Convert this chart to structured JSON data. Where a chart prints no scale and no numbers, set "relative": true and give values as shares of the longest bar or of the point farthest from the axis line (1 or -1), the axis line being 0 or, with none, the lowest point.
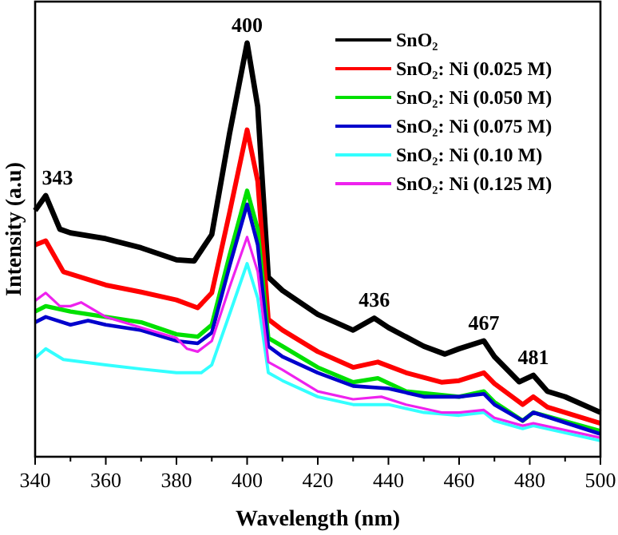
{
  "chart_data": {
    "type": "line",
    "relative": true,
    "xlabel": "Wavelength (nm)",
    "ylabel": "Intensity (a.u)",
    "xlim": [
      340,
      500
    ],
    "xticks": [
      340,
      {
        "value": 350,
        "label": null
      },
      360,
      {
        "value": 370,
        "label": null
      },
      380,
      {
        "value": 390,
        "label": null
      },
      400,
      {
        "value": 410,
        "label": null
      },
      420,
      {
        "value": 430,
        "label": null
      },
      440,
      {
        "value": 450,
        "label": null
      },
      460,
      {
        "value": 470,
        "label": null
      },
      480,
      {
        "value": 490,
        "label": null
      },
      500
    ],
    "legend": "top right",
    "grid": false,
    "marker": "none",
    "line_style": "solid",
    "series": [
      {
        "name": "SnO₂",
        "color": "#000000",
        "x": [
          340,
          343,
          347,
          350,
          360,
          370,
          380,
          385,
          390,
          395,
          400,
          403,
          406,
          410,
          420,
          430,
          436,
          440,
          450,
          456,
          460,
          467,
          470,
          477,
          481,
          485,
          490,
          500
        ],
        "values": [
          0.595,
          0.631,
          0.55,
          0.541,
          0.527,
          0.505,
          0.476,
          0.473,
          0.537,
          0.78,
          1,
          0.846,
          0.434,
          0.402,
          0.344,
          0.306,
          0.335,
          0.312,
          0.267,
          0.248,
          0.261,
          0.28,
          0.242,
          0.181,
          0.197,
          0.158,
          0.145,
          0.107
        ]
      },
      {
        "name": "SnO₂: Ni (0.025 M)",
        "color": "#ff0000",
        "x": [
          340,
          343,
          348,
          360,
          370,
          380,
          386,
          390,
          395,
          400,
          403,
          406,
          410,
          420,
          430,
          437,
          445,
          455,
          460,
          467,
          470,
          478,
          481,
          485,
          500
        ],
        "values": [
          0.512,
          0.522,
          0.447,
          0.415,
          0.398,
          0.379,
          0.36,
          0.396,
          0.589,
          0.79,
          0.666,
          0.332,
          0.306,
          0.254,
          0.216,
          0.229,
          0.203,
          0.18,
          0.184,
          0.203,
          0.177,
          0.126,
          0.145,
          0.12,
          0.081
        ]
      },
      {
        "name": "SnO₂: Ni (0.050 M)",
        "color": "#00e000",
        "x": [
          340,
          343,
          350,
          360,
          370,
          380,
          386,
          390,
          395,
          400,
          403,
          406,
          410,
          420,
          430,
          437,
          445,
          460,
          467,
          470,
          478,
          481,
          500
        ],
        "values": [
          0.351,
          0.364,
          0.351,
          0.338,
          0.325,
          0.296,
          0.29,
          0.319,
          0.486,
          0.643,
          0.55,
          0.287,
          0.267,
          0.216,
          0.18,
          0.19,
          0.158,
          0.145,
          0.158,
          0.132,
          0.087,
          0.107,
          0.062
        ]
      },
      {
        "name": "SnO₂: Ni (0.075 M)",
        "color": "#0000cc",
        "x": [
          340,
          343,
          350,
          355,
          360,
          370,
          380,
          386,
          390,
          395,
          400,
          403,
          406,
          410,
          420,
          430,
          440,
          450,
          460,
          467,
          470,
          478,
          481,
          500
        ],
        "values": [
          0.325,
          0.338,
          0.319,
          0.329,
          0.319,
          0.306,
          0.28,
          0.274,
          0.3,
          0.46,
          0.61,
          0.512,
          0.267,
          0.242,
          0.203,
          0.171,
          0.165,
          0.145,
          0.145,
          0.152,
          0.126,
          0.087,
          0.107,
          0.055
        ]
      },
      {
        "name": "SnO₂: Ni (0.10 M)",
        "color": "#33ffff",
        "x": [
          340,
          343,
          348,
          360,
          370,
          380,
          387,
          390,
          395,
          400,
          403,
          406,
          410,
          420,
          430,
          440,
          450,
          460,
          467,
          470,
          478,
          481,
          500
        ],
        "values": [
          0.239,
          0.261,
          0.235,
          0.222,
          0.212,
          0.203,
          0.203,
          0.222,
          0.344,
          0.467,
          0.383,
          0.203,
          0.184,
          0.145,
          0.126,
          0.126,
          0.107,
          0.1,
          0.107,
          0.087,
          0.068,
          0.075,
          0.039
        ]
      },
      {
        "name": "SnO₂: Ni (0.125 M)",
        "color": "#ee22ee",
        "x": [
          340,
          343,
          347,
          350,
          353,
          360,
          370,
          380,
          383,
          386,
          390,
          395,
          400,
          403,
          406,
          410,
          420,
          430,
          438,
          445,
          455,
          460,
          467,
          470,
          478,
          481,
          500
        ],
        "values": [
          0.377,
          0.396,
          0.364,
          0.364,
          0.373,
          0.338,
          0.312,
          0.287,
          0.261,
          0.254,
          0.28,
          0.409,
          0.531,
          0.447,
          0.229,
          0.21,
          0.158,
          0.139,
          0.145,
          0.126,
          0.107,
          0.107,
          0.113,
          0.094,
          0.075,
          0.081,
          0.046
        ]
      }
    ],
    "annotations": [
      {
        "text": "343",
        "x": 343,
        "y": 0.631
      },
      {
        "text": "400",
        "x": 400,
        "y": 1
      },
      {
        "text": "436",
        "x": 436,
        "y": 0.335
      },
      {
        "text": "467",
        "x": 467,
        "y": 0.28
      },
      {
        "text": "481",
        "x": 481,
        "y": 0.197
      }
    ]
  }
}
